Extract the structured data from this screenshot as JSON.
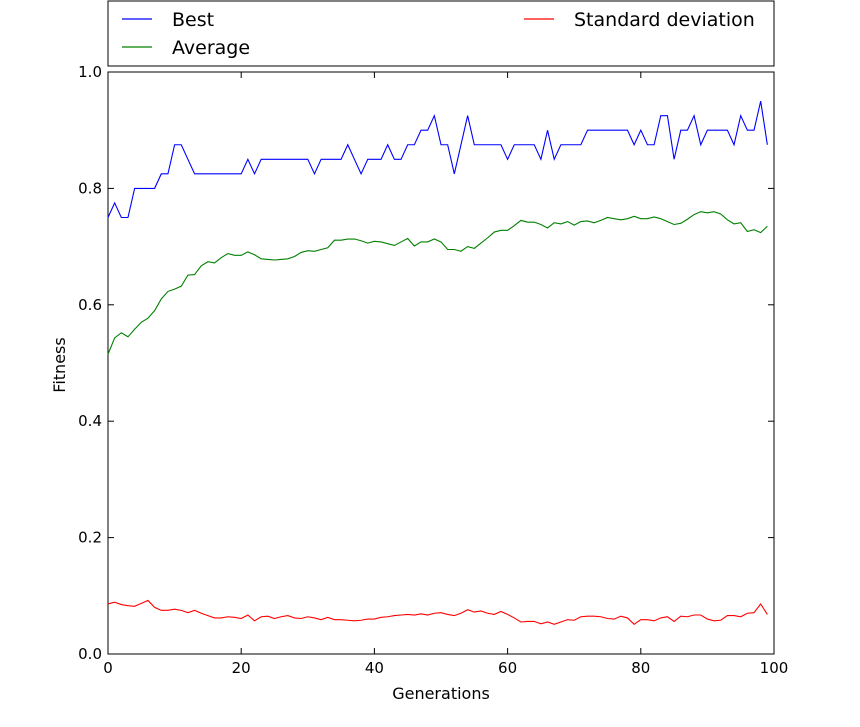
{
  "chart_data": {
    "type": "line",
    "xlabel": "Generations",
    "ylabel": "Fitness",
    "xlim": [
      0,
      100
    ],
    "ylim": [
      0.0,
      1.0
    ],
    "xticks": [
      0,
      20,
      40,
      60,
      80,
      100
    ],
    "xtick_labels": [
      "0",
      "20",
      "40",
      "60",
      "80",
      "100"
    ],
    "yticks": [
      0.0,
      0.2,
      0.4,
      0.6,
      0.8,
      1.0
    ],
    "ytick_labels": [
      "0.0",
      "0.2",
      "0.4",
      "0.6",
      "0.8",
      "1.0"
    ],
    "grid": false,
    "legend_position": "above plot, two columns",
    "x": [
      0,
      1,
      2,
      3,
      4,
      5,
      6,
      7,
      8,
      9,
      10,
      11,
      12,
      13,
      14,
      15,
      16,
      17,
      18,
      19,
      20,
      21,
      22,
      23,
      24,
      25,
      26,
      27,
      28,
      29,
      30,
      31,
      32,
      33,
      34,
      35,
      36,
      37,
      38,
      39,
      40,
      41,
      42,
      43,
      44,
      45,
      46,
      47,
      48,
      49,
      50,
      51,
      52,
      53,
      54,
      55,
      56,
      57,
      58,
      59,
      60,
      61,
      62,
      63,
      64,
      65,
      66,
      67,
      68,
      69,
      70,
      71,
      72,
      73,
      74,
      75,
      76,
      77,
      78,
      79,
      80,
      81,
      82,
      83,
      84,
      85,
      86,
      87,
      88,
      89,
      90,
      91,
      92,
      93,
      94,
      95,
      96,
      97,
      98,
      99
    ],
    "series": [
      {
        "name": "Best",
        "color": "#0000ff",
        "values": [
          0.75,
          0.775,
          0.75,
          0.75,
          0.8,
          0.8,
          0.8,
          0.8,
          0.825,
          0.825,
          0.875,
          0.875,
          0.85,
          0.825,
          0.825,
          0.825,
          0.825,
          0.825,
          0.825,
          0.825,
          0.825,
          0.85,
          0.825,
          0.85,
          0.85,
          0.85,
          0.85,
          0.85,
          0.85,
          0.85,
          0.85,
          0.825,
          0.85,
          0.85,
          0.85,
          0.85,
          0.875,
          0.85,
          0.825,
          0.85,
          0.85,
          0.85,
          0.875,
          0.85,
          0.85,
          0.875,
          0.875,
          0.9,
          0.9,
          0.925,
          0.875,
          0.875,
          0.825,
          0.875,
          0.925,
          0.875,
          0.875,
          0.875,
          0.875,
          0.875,
          0.85,
          0.875,
          0.875,
          0.875,
          0.875,
          0.85,
          0.9,
          0.85,
          0.875,
          0.875,
          0.875,
          0.875,
          0.9,
          0.9,
          0.9,
          0.9,
          0.9,
          0.9,
          0.9,
          0.875,
          0.9,
          0.875,
          0.875,
          0.925,
          0.925,
          0.85,
          0.9,
          0.9,
          0.925,
          0.875,
          0.9,
          0.9,
          0.9,
          0.9,
          0.875,
          0.925,
          0.9,
          0.9,
          0.95,
          0.875
        ]
      },
      {
        "name": "Average",
        "color": "#008000",
        "values": [
          0.515,
          0.543,
          0.552,
          0.545,
          0.558,
          0.57,
          0.577,
          0.59,
          0.61,
          0.623,
          0.627,
          0.632,
          0.651,
          0.652,
          0.667,
          0.674,
          0.672,
          0.681,
          0.688,
          0.685,
          0.685,
          0.691,
          0.686,
          0.679,
          0.678,
          0.677,
          0.678,
          0.679,
          0.683,
          0.69,
          0.693,
          0.692,
          0.695,
          0.698,
          0.711,
          0.711,
          0.713,
          0.713,
          0.71,
          0.706,
          0.709,
          0.708,
          0.705,
          0.702,
          0.708,
          0.714,
          0.701,
          0.708,
          0.708,
          0.713,
          0.708,
          0.695,
          0.695,
          0.692,
          0.7,
          0.697,
          0.706,
          0.715,
          0.725,
          0.728,
          0.728,
          0.736,
          0.745,
          0.742,
          0.742,
          0.738,
          0.732,
          0.741,
          0.739,
          0.743,
          0.737,
          0.743,
          0.744,
          0.741,
          0.745,
          0.75,
          0.748,
          0.746,
          0.748,
          0.752,
          0.748,
          0.748,
          0.751,
          0.748,
          0.743,
          0.738,
          0.74,
          0.747,
          0.755,
          0.76,
          0.758,
          0.76,
          0.756,
          0.746,
          0.739,
          0.741,
          0.726,
          0.729,
          0.724,
          0.735
        ]
      },
      {
        "name": "Standard deviation",
        "color": "#ff0000",
        "values": [
          0.086,
          0.089,
          0.085,
          0.083,
          0.082,
          0.087,
          0.092,
          0.08,
          0.075,
          0.075,
          0.077,
          0.075,
          0.071,
          0.075,
          0.07,
          0.066,
          0.062,
          0.062,
          0.064,
          0.063,
          0.061,
          0.067,
          0.057,
          0.064,
          0.065,
          0.061,
          0.064,
          0.066,
          0.062,
          0.061,
          0.064,
          0.062,
          0.059,
          0.063,
          0.059,
          0.059,
          0.058,
          0.057,
          0.058,
          0.06,
          0.06,
          0.063,
          0.064,
          0.066,
          0.067,
          0.068,
          0.067,
          0.069,
          0.067,
          0.07,
          0.071,
          0.068,
          0.066,
          0.07,
          0.076,
          0.072,
          0.074,
          0.07,
          0.068,
          0.073,
          0.068,
          0.062,
          0.055,
          0.056,
          0.056,
          0.052,
          0.055,
          0.051,
          0.055,
          0.059,
          0.058,
          0.064,
          0.065,
          0.065,
          0.064,
          0.061,
          0.06,
          0.065,
          0.062,
          0.051,
          0.059,
          0.059,
          0.057,
          0.062,
          0.064,
          0.056,
          0.065,
          0.064,
          0.067,
          0.067,
          0.06,
          0.057,
          0.058,
          0.066,
          0.066,
          0.064,
          0.07,
          0.071,
          0.086,
          0.068
        ]
      }
    ]
  }
}
